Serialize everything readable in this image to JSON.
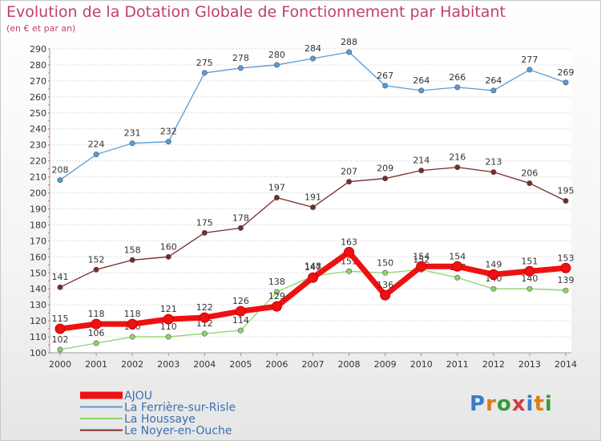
{
  "title": "Evolution de la Dotation Globale de Fonctionnement par Habitant",
  "subtitle": "(en € et par an)",
  "logo": {
    "text": "Proxiti",
    "letters": [
      {
        "ch": "P",
        "color": "#3a7fc4"
      },
      {
        "ch": "r",
        "color": "#e07a1a"
      },
      {
        "ch": "o",
        "color": "#3a9a3a"
      },
      {
        "ch": "x",
        "color": "#d23c3c"
      },
      {
        "ch": "i",
        "color": "#3a7fc4"
      },
      {
        "ch": "t",
        "color": "#e07a1a"
      },
      {
        "ch": "i",
        "color": "#3a9a3a"
      }
    ]
  },
  "chart_data": {
    "type": "line",
    "title": "Evolution de la Dotation Globale de Fonctionnement par Habitant",
    "subtitle": "(en € et par an)",
    "x": [
      "2000",
      "2001",
      "2002",
      "2003",
      "2004",
      "2005",
      "2006",
      "2007",
      "2008",
      "2009",
      "2010",
      "2011",
      "2012",
      "2013",
      "2014"
    ],
    "ylim": [
      100,
      290
    ],
    "yticks": [
      100,
      110,
      120,
      130,
      140,
      150,
      160,
      170,
      180,
      190,
      200,
      210,
      220,
      230,
      240,
      250,
      260,
      270,
      280,
      290
    ],
    "grid": "horizontal",
    "legend_position": "bottom-left",
    "series": [
      {
        "name": "La Ferrière-sur-Risle",
        "color": "#5a9bd5",
        "values": [
          208,
          224,
          231,
          232,
          275,
          278,
          280,
          284,
          288,
          267,
          264,
          266,
          264,
          277,
          269
        ]
      },
      {
        "name": "Le Noyer-en-Ouche",
        "color": "#7a2a2a",
        "values": [
          141,
          152,
          158,
          160,
          175,
          178,
          197,
          191,
          207,
          209,
          214,
          216,
          213,
          206,
          195
        ]
      },
      {
        "name": "La Houssaye",
        "color": "#8fd46a",
        "values": [
          102,
          106,
          110,
          110,
          112,
          114,
          138,
          148,
          151,
          150,
          152,
          147,
          140,
          140,
          139
        ]
      },
      {
        "name": "AJOU",
        "color": "#ee1111",
        "values": [
          115,
          118,
          118,
          121,
          122,
          126,
          129,
          147,
          163,
          136,
          154,
          154,
          149,
          151,
          153
        ]
      }
    ],
    "legend": [
      "AJOU",
      "La Ferrière-sur-Risle",
      "La Houssaye",
      "Le Noyer-en-Ouche"
    ]
  }
}
